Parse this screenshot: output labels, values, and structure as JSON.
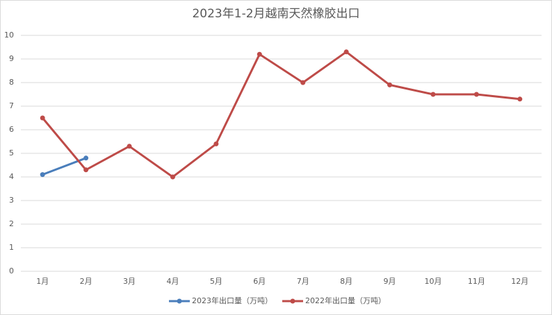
{
  "chart_data": {
    "type": "line",
    "title": "2023年1-2月越南天然橡胶出口",
    "categories": [
      "1月",
      "2月",
      "3月",
      "4月",
      "5月",
      "6月",
      "7月",
      "8月",
      "9月",
      "10月",
      "11月",
      "12月"
    ],
    "series": [
      {
        "name": "2023年出口量（万吨）",
        "color": "#4a7ebb",
        "values": [
          4.1,
          4.8,
          null,
          null,
          null,
          null,
          null,
          null,
          null,
          null,
          null,
          null
        ]
      },
      {
        "name": "2022年出口量（万吨）",
        "color": "#be4b48",
        "values": [
          6.5,
          4.3,
          5.3,
          4.0,
          5.4,
          9.2,
          8.0,
          9.3,
          7.9,
          7.5,
          7.5,
          7.3
        ]
      }
    ],
    "ylim": [
      0,
      10
    ],
    "yticks": [
      0,
      1,
      2,
      3,
      4,
      5,
      6,
      7,
      8,
      9,
      10
    ],
    "grid": true,
    "legend": "bottom"
  }
}
